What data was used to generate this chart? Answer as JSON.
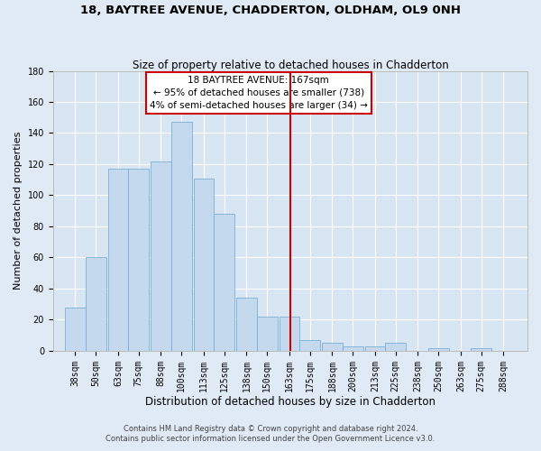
{
  "title": "18, BAYTREE AVENUE, CHADDERTON, OLDHAM, OL9 0NH",
  "subtitle": "Size of property relative to detached houses in Chadderton",
  "xlabel": "Distribution of detached houses by size in Chadderton",
  "ylabel": "Number of detached properties",
  "footnote1": "Contains HM Land Registry data © Crown copyright and database right 2024.",
  "footnote2": "Contains public sector information licensed under the Open Government Licence v3.0.",
  "categories": [
    "38sqm",
    "50sqm",
    "63sqm",
    "75sqm",
    "88sqm",
    "100sqm",
    "113sqm",
    "125sqm",
    "138sqm",
    "150sqm",
    "163sqm",
    "175sqm",
    "188sqm",
    "200sqm",
    "213sqm",
    "225sqm",
    "238sqm",
    "250sqm",
    "263sqm",
    "275sqm",
    "288sqm"
  ],
  "centers": [
    38,
    50,
    63,
    75,
    88,
    100,
    113,
    125,
    138,
    150,
    163,
    175,
    188,
    200,
    213,
    225,
    238,
    250,
    263,
    275,
    288
  ],
  "values": [
    28,
    60,
    117,
    117,
    122,
    147,
    111,
    88,
    34,
    22,
    22,
    7,
    5,
    3,
    3,
    5,
    0,
    2,
    0,
    2,
    0
  ],
  "bar_color": "#c5d9ee",
  "bar_edge_color": "#7aafd4",
  "vline_x": 163.5,
  "vline_color": "#cc0000",
  "annotation_text": "18 BAYTREE AVENUE: 167sqm\n← 95% of detached houses are smaller (738)\n4% of semi-detached houses are larger (34) →",
  "annotation_box_edgecolor": "#cc0000",
  "figure_bg_color": "#e0eaf5",
  "plot_bg_color": "#d8e6f3",
  "ylim": [
    0,
    180
  ],
  "yticks": [
    0,
    20,
    40,
    60,
    80,
    100,
    120,
    140,
    160,
    180
  ],
  "bar_width": 12.0,
  "title_fontsize": 9.5,
  "subtitle_fontsize": 8.5,
  "xlabel_fontsize": 8.5,
  "ylabel_fontsize": 8.0,
  "tick_fontsize": 7.0,
  "annot_fontsize": 7.5,
  "footnote_fontsize": 6.0
}
